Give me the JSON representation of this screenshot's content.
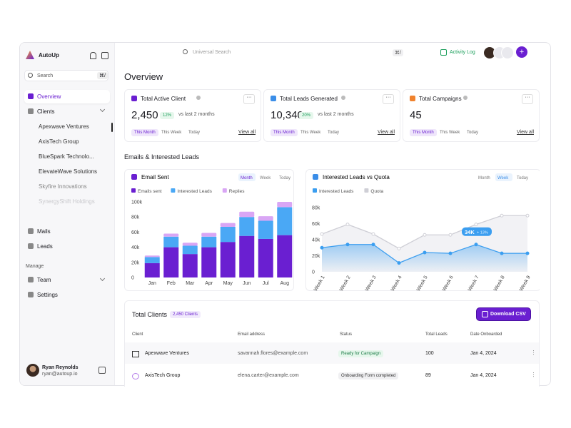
{
  "sidebar": {
    "brand": "AutoUp",
    "search": "Search",
    "shortcut": "⌘/",
    "nav": [
      "Overview",
      "Clients"
    ],
    "clients": [
      "Apexwave Ventures",
      "AxisTech Group",
      "BlueSpark Technolo...",
      "ElevateWave Solutions",
      "Skyfire Innovations",
      "SynergyShift Holdings"
    ],
    "nav2": [
      "Mails",
      "Leads"
    ],
    "section": "Manage",
    "manage": [
      "Team",
      "Settings"
    ],
    "user": {
      "name": "Ryan Reynolds",
      "email": "ryan@autoup.io"
    }
  },
  "topbar": {
    "search": "Universal Search",
    "shortcut": "⌘/",
    "activity": "Activity Log"
  },
  "title": "Overview",
  "stats": [
    {
      "title": "Total Active Client",
      "value": "2,450",
      "change": "12%",
      "note": "vs last 2 months",
      "tabs": [
        "This Month",
        "This Week",
        "Today"
      ],
      "link": "View all",
      "color": "#6a1fd1"
    },
    {
      "title": "Total Leads Generated",
      "value": "10,340",
      "change": "20%",
      "note": "vs last 2 months",
      "tabs": [
        "This Month",
        "This Week",
        "Today"
      ],
      "link": "View all",
      "color": "#3b8ee8"
    },
    {
      "title": "Total Campaigns",
      "value": "45",
      "tabs": [
        "This Month",
        "This Week",
        "Today"
      ],
      "link": "View all",
      "color": "#f0822d"
    }
  ],
  "section_title": "Emails & Interested Leads",
  "chart_data": [
    {
      "type": "bar",
      "stacked": true,
      "title": "Email Sent",
      "tabs": [
        "Month",
        "Week",
        "Today"
      ],
      "selected_tab": 0,
      "categories": [
        "Jan",
        "Feb",
        "Mar",
        "Apr",
        "May",
        "Jun",
        "Jul",
        "Aug"
      ],
      "series": [
        {
          "name": "Emails sent",
          "color": "#6a1fd1",
          "values": [
            19000,
            40000,
            31000,
            40000,
            47000,
            55000,
            51000,
            56000
          ]
        },
        {
          "name": "Interested Leads",
          "color": "#4aa8f5",
          "values": [
            8000,
            14000,
            11000,
            14000,
            20000,
            25000,
            24000,
            37000
          ]
        },
        {
          "name": "Replies",
          "color": "#d9a6f5",
          "values": [
            2000,
            4000,
            4000,
            5000,
            5000,
            7000,
            6000,
            7000
          ]
        }
      ],
      "ylim": [
        0,
        100000
      ],
      "yticks": [
        0,
        {
          "value": 20000,
          "label": "20k"
        },
        {
          "value": 40000,
          "label": "40k"
        },
        {
          "value": 60000,
          "label": "60k"
        },
        {
          "value": 80000,
          "label": "80k"
        },
        {
          "value": 100000,
          "label": "100k"
        }
      ]
    },
    {
      "type": "line",
      "title": "Interested Leads vs Quota",
      "tabs": [
        "Month",
        "Week",
        "Today"
      ],
      "selected_tab": 1,
      "categories": [
        "Week 1",
        "Week 2",
        "Week 3",
        "Week 4",
        "Week 5",
        "Week 6",
        "Week 7",
        "Week 8",
        "Week 9"
      ],
      "series": [
        {
          "name": "Interested Leads",
          "color": "#3b9ef0",
          "values": [
            30000,
            34000,
            34000,
            11000,
            24000,
            23000,
            34000,
            23000,
            23000
          ]
        },
        {
          "name": "Quota",
          "color": "#cfcfd6",
          "values": [
            47000,
            59000,
            47000,
            29000,
            46000,
            46000,
            59000,
            70000,
            70000
          ]
        }
      ],
      "ylim": [
        0,
        80000
      ],
      "yticks": [
        0,
        {
          "value": 20000,
          "label": "20k"
        },
        {
          "value": 40000,
          "label": "40k"
        },
        {
          "value": 60000,
          "label": "60k"
        },
        {
          "value": 80000,
          "label": "80k"
        }
      ],
      "annotation": {
        "index": 6,
        "text": "34K",
        "change": "+ 13%"
      }
    }
  ],
  "table": {
    "title": "Total Clients",
    "badge": "2,450 Clients",
    "button": "Download CSV",
    "columns": [
      "Client",
      "Email address",
      "Status",
      "Total Leads",
      "Date Onboarded"
    ],
    "rows": [
      [
        "Apexwave Ventures",
        "savannah.flores@example.com",
        "Ready for Campaign",
        "100",
        "Jan 4, 2024"
      ],
      [
        "AxisTech Group",
        "elena.carter@example.com",
        "Onboarding Form completed",
        "89",
        "Jan 4, 2024"
      ]
    ]
  }
}
